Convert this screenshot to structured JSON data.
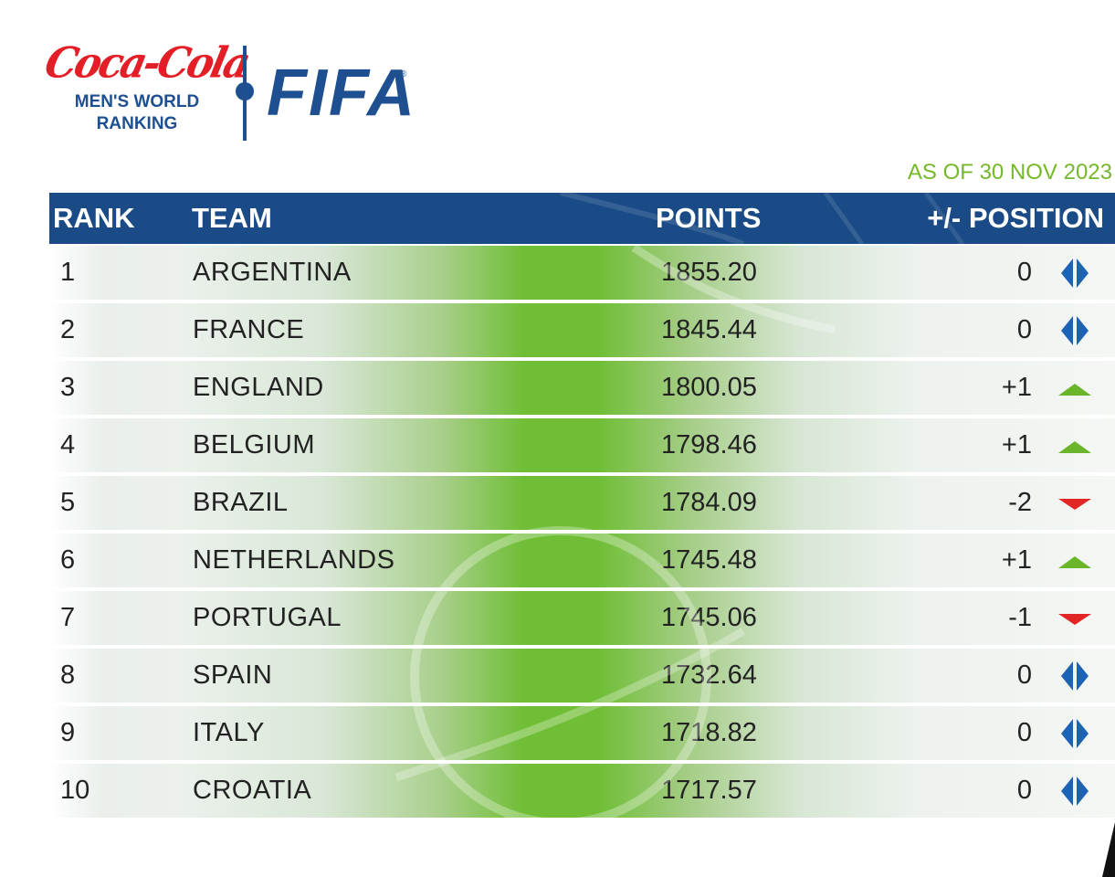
{
  "brand": {
    "sponsor_logo": "Coca-Cola",
    "title_line1": "MEN'S WORLD",
    "title_line2": "RANKING",
    "fifa_logo": "FIFA"
  },
  "as_of": "AS OF 30 NOV 2023",
  "columns": {
    "rank": "RANK",
    "team": "TEAM",
    "points": "POINTS",
    "change": "+/- POSITION"
  },
  "colors": {
    "header_blue": "#1a4b86",
    "brand_blue": "#1d4f91",
    "coke_red": "#e41e26",
    "date_green": "#74b927",
    "up_green": "#6bb52a",
    "down_red": "#e22626",
    "same_blue": "#1d63b5"
  },
  "rows": [
    {
      "rank": "1",
      "team": "ARGENTINA",
      "points": "1855.20",
      "change": "0",
      "trend": "same",
      "icon": "unchanged-arrows-icon"
    },
    {
      "rank": "2",
      "team": "FRANCE",
      "points": "1845.44",
      "change": "0",
      "trend": "same",
      "icon": "unchanged-arrows-icon"
    },
    {
      "rank": "3",
      "team": "ENGLAND",
      "points": "1800.05",
      "change": "+1",
      "trend": "up",
      "icon": "up-triangle-icon"
    },
    {
      "rank": "4",
      "team": "BELGIUM",
      "points": "1798.46",
      "change": "+1",
      "trend": "up",
      "icon": "up-triangle-icon"
    },
    {
      "rank": "5",
      "team": "BRAZIL",
      "points": "1784.09",
      "change": "-2",
      "trend": "down",
      "icon": "down-triangle-icon"
    },
    {
      "rank": "6",
      "team": "NETHERLANDS",
      "points": "1745.48",
      "change": "+1",
      "trend": "up",
      "icon": "up-triangle-icon"
    },
    {
      "rank": "7",
      "team": "PORTUGAL",
      "points": "1745.06",
      "change": "-1",
      "trend": "down",
      "icon": "down-triangle-icon"
    },
    {
      "rank": "8",
      "team": "SPAIN",
      "points": "1732.64",
      "change": "0",
      "trend": "same",
      "icon": "unchanged-arrows-icon"
    },
    {
      "rank": "9",
      "team": "ITALY",
      "points": "1718.82",
      "change": "0",
      "trend": "same",
      "icon": "unchanged-arrows-icon"
    },
    {
      "rank": "10",
      "team": "CROATIA",
      "points": "1717.57",
      "change": "0",
      "trend": "same",
      "icon": "unchanged-arrows-icon"
    }
  ]
}
